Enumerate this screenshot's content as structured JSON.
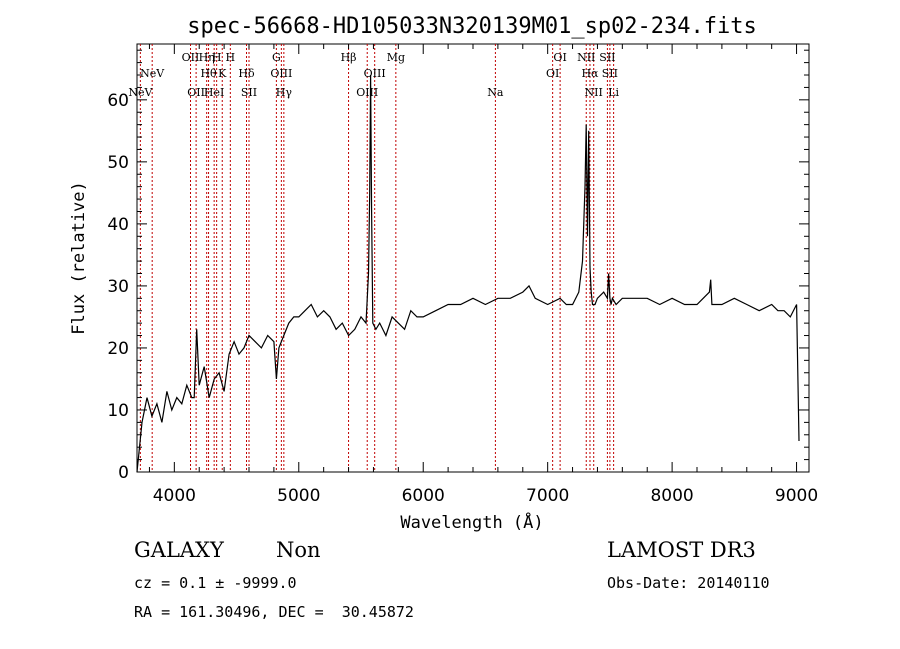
{
  "chart_data": {
    "type": "line",
    "title": "spec-56668-HD105033N320139M01_sp02-234.fits",
    "xlabel": "Wavelength (Å)",
    "ylabel": "Flux (relative)",
    "xlim": [
      3700,
      9100
    ],
    "ylim": [
      0,
      69
    ],
    "x_ticks": [
      4000,
      5000,
      6000,
      7000,
      8000,
      9000
    ],
    "y_ticks": [
      0,
      10,
      20,
      30,
      40,
      50,
      60
    ],
    "grid": false,
    "series": [
      {
        "x": [
          3700,
          3740,
          3780,
          3820,
          3860,
          3900,
          3940,
          3980,
          4020,
          4060,
          4100,
          4140,
          4160,
          4180,
          4200,
          4240,
          4280,
          4320,
          4360,
          4400,
          4440,
          4480,
          4520,
          4560,
          4600,
          4650,
          4700,
          4750,
          4800,
          4820,
          4840,
          4880,
          4920,
          4960,
          5000,
          5050,
          5100,
          5150,
          5200,
          5250,
          5300,
          5350,
          5400,
          5450,
          5500,
          5540,
          5560,
          5570,
          5577,
          5585,
          5595,
          5620,
          5650,
          5700,
          5750,
          5800,
          5850,
          5900,
          5950,
          6000,
          6100,
          6200,
          6300,
          6400,
          6500,
          6600,
          6700,
          6800,
          6850,
          6900,
          7000,
          7100,
          7150,
          7200,
          7250,
          7280,
          7300,
          7310,
          7320,
          7330,
          7340,
          7350,
          7360,
          7380,
          7400,
          7450,
          7480,
          7490,
          7500,
          7510,
          7520,
          7550,
          7600,
          7700,
          7800,
          7900,
          8000,
          8100,
          8200,
          8300,
          8310,
          8320,
          8400,
          8500,
          8600,
          8700,
          8800,
          8850,
          8900,
          8950,
          9000,
          9020
        ],
        "values": [
          0,
          8,
          12,
          9,
          11,
          8,
          13,
          10,
          12,
          11,
          14,
          12,
          12,
          23,
          14,
          17,
          12,
          15,
          16,
          13,
          19,
          21,
          19,
          20,
          22,
          21,
          20,
          22,
          21,
          15,
          20,
          22,
          24,
          25,
          25,
          26,
          27,
          25,
          26,
          25,
          23,
          24,
          22,
          23,
          25,
          24,
          32,
          45,
          64,
          42,
          24,
          23,
          24,
          22,
          25,
          24,
          23,
          26,
          25,
          25,
          26,
          27,
          27,
          28,
          27,
          28,
          28,
          29,
          30,
          28,
          27,
          28,
          27,
          27,
          29,
          34,
          46,
          56,
          38,
          55,
          33,
          29,
          27,
          27,
          28,
          29,
          28,
          32,
          28,
          27,
          28,
          27,
          28,
          28,
          28,
          27,
          28,
          27,
          27,
          29,
          31,
          27,
          27,
          28,
          27,
          26,
          27,
          26,
          26,
          25,
          27,
          5
        ]
      }
    ],
    "spectral_lines": [
      {
        "x": 3727,
        "label": "NeV",
        "row": 3
      },
      {
        "x": 3822,
        "label": "NeV",
        "row": 2
      },
      {
        "x": 4130,
        "label": "OII",
        "row": 1
      },
      {
        "x": 4175,
        "label": "OII",
        "row": 3
      },
      {
        "x": 4260,
        "label": "Hη",
        "row": 1
      },
      {
        "x": 4275,
        "label": "Hθ",
        "row": 2
      },
      {
        "x": 4320,
        "label": "HeI",
        "row": 3
      },
      {
        "x": 4340,
        "label": "H",
        "row": 1
      },
      {
        "x": 4385,
        "label": "K",
        "row": 2
      },
      {
        "x": 4450,
        "label": "H",
        "row": 1
      },
      {
        "x": 4580,
        "label": "Hδ",
        "row": 2
      },
      {
        "x": 4600,
        "label": "SII",
        "row": 3
      },
      {
        "x": 4820,
        "label": "G",
        "row": 1
      },
      {
        "x": 4860,
        "label": "OIII",
        "row": 2
      },
      {
        "x": 4880,
        "label": "Hγ",
        "row": 3
      },
      {
        "x": 5400,
        "label": "Hβ",
        "row": 1
      },
      {
        "x": 5550,
        "label": "OIII",
        "row": 3
      },
      {
        "x": 5610,
        "label": "OIII",
        "row": 2
      },
      {
        "x": 5780,
        "label": "Mg",
        "row": 1
      },
      {
        "x": 6580,
        "label": "Na",
        "row": 3
      },
      {
        "x": 7040,
        "label": "OI",
        "row": 2
      },
      {
        "x": 7100,
        "label": "OI",
        "row": 1
      },
      {
        "x": 7310,
        "label": "NII",
        "row": 1
      },
      {
        "x": 7340,
        "label": "Hα",
        "row": 2
      },
      {
        "x": 7370,
        "label": "NII",
        "row": 3
      },
      {
        "x": 7480,
        "label": "SII",
        "row": 1
      },
      {
        "x": 7500,
        "label": "SII",
        "row": 2
      },
      {
        "x": 7530,
        "label": "Li",
        "row": 3
      }
    ],
    "colors": {
      "spectrum": "#000000",
      "lines": "#c00000"
    }
  },
  "info": {
    "class": "GALAXY",
    "subclass": "Non",
    "survey": "LAMOST DR3",
    "cz": "cz = 0.1 ± -9999.0",
    "obs_date": "Obs-Date: 20140110",
    "coords": "RA = 161.30496, DEC =  30.45872"
  }
}
